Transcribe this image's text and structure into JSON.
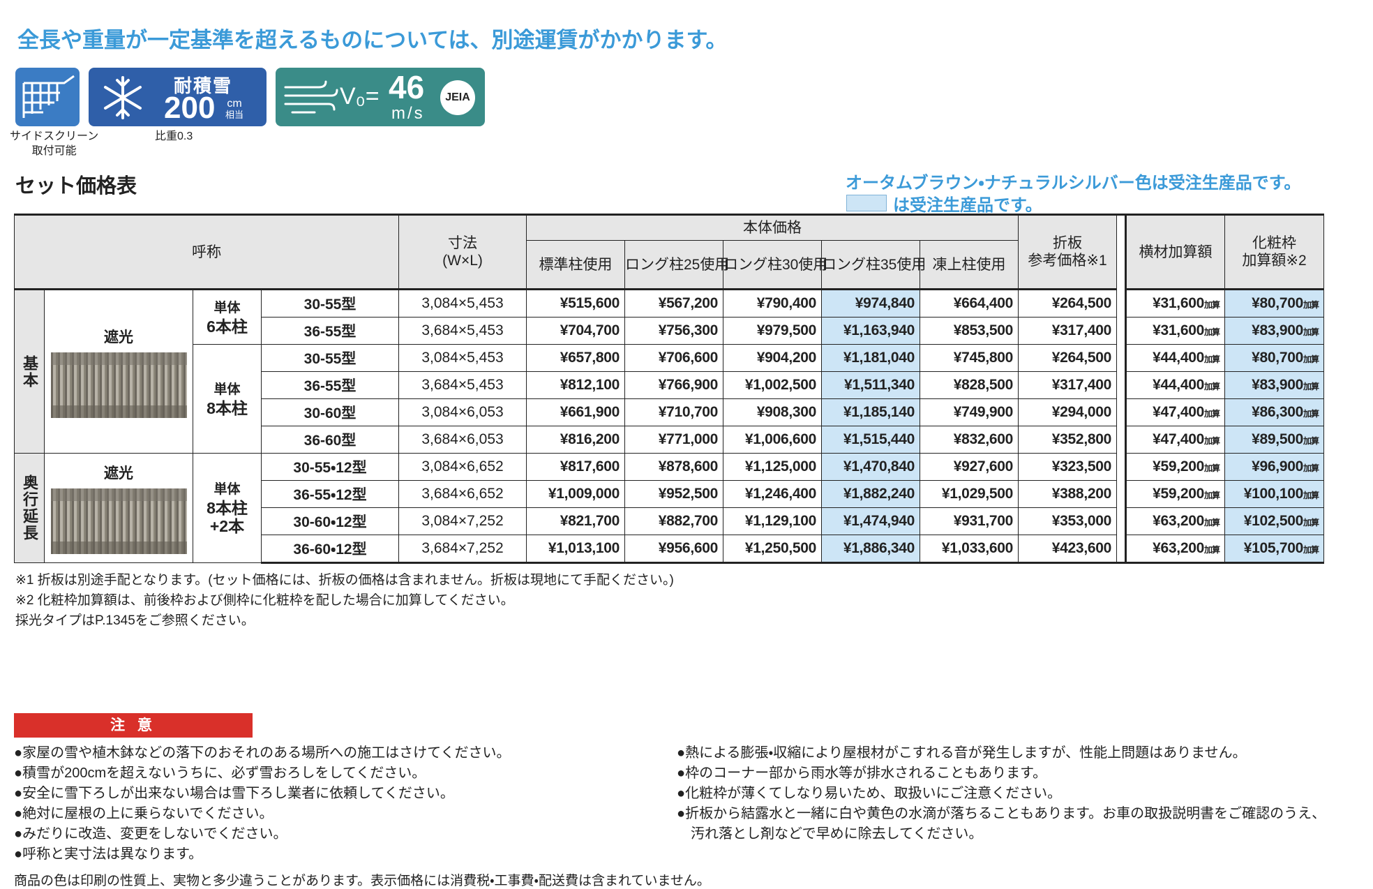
{
  "header": {
    "notice": "全長や重量が一定基準を超えるものについては、別途運賃がかかります。"
  },
  "badges": {
    "side_screen": {
      "caption_lines": [
        "サイドスクリーン",
        "取付可能"
      ]
    },
    "snow": {
      "label": "耐積雪",
      "value": "200",
      "unit": "cm",
      "unit_note": "相当",
      "caption": "比重0.3"
    },
    "wind": {
      "label": "V₀=",
      "value": "46",
      "unit": "m/s",
      "mark": "JEIA"
    }
  },
  "section": {
    "title": "セット価格表",
    "notes": [
      "オータムブラウン・ナチュラルシルバー色は受注生産品です。",
      "は受注生産品です。"
    ]
  },
  "table": {
    "headers": {
      "name": "呼称",
      "size": [
        "寸法",
        "(W×L)"
      ],
      "body_price": "本体価格",
      "price_columns": [
        "標準柱使用",
        "ロング柱25使用",
        "ロング柱30使用",
        "ロング柱35使用",
        "凍上柱使用"
      ],
      "fold": [
        "折板",
        "参考価格※1"
      ],
      "cross": "横材加算額",
      "decor": [
        "化粧枠",
        "加算額※2"
      ]
    },
    "add_suffix": "加算",
    "groups": [
      {
        "label": "基本",
        "image_label": "遮光",
        "subgroups": [
          {
            "label_lines": [
              "単体",
              "6本柱"
            ],
            "rows": [
              [
                "30-55型",
                "3,084×5,453",
                "¥515,600",
                "¥567,200",
                "¥790,400",
                "¥974,840",
                "¥664,400",
                "¥264,500",
                "¥31,600",
                "¥80,700"
              ],
              [
                "36-55型",
                "3,684×5,453",
                "¥704,700",
                "¥756,300",
                "¥979,500",
                "¥1,163,940",
                "¥853,500",
                "¥317,400",
                "¥31,600",
                "¥83,900"
              ]
            ]
          },
          {
            "label_lines": [
              "単体",
              "8本柱"
            ],
            "rows": [
              [
                "30-55型",
                "3,084×5,453",
                "¥657,800",
                "¥706,600",
                "¥904,200",
                "¥1,181,040",
                "¥745,800",
                "¥264,500",
                "¥44,400",
                "¥80,700"
              ],
              [
                "36-55型",
                "3,684×5,453",
                "¥812,100",
                "¥766,900",
                "¥1,002,500",
                "¥1,511,340",
                "¥828,500",
                "¥317,400",
                "¥44,400",
                "¥83,900"
              ],
              [
                "30-60型",
                "3,084×6,053",
                "¥661,900",
                "¥710,700",
                "¥908,300",
                "¥1,185,140",
                "¥749,900",
                "¥294,000",
                "¥47,400",
                "¥86,300"
              ],
              [
                "36-60型",
                "3,684×6,053",
                "¥816,200",
                "¥771,000",
                "¥1,006,600",
                "¥1,515,440",
                "¥832,600",
                "¥352,800",
                "¥47,400",
                "¥89,500"
              ]
            ]
          }
        ]
      },
      {
        "label": "奥行延長",
        "image_label": "遮光",
        "subgroups": [
          {
            "label_lines": [
              "単体",
              "8本柱",
              "+2本"
            ],
            "rows": [
              [
                "30-55・12型",
                "3,084×6,652",
                "¥817,600",
                "¥878,600",
                "¥1,125,000",
                "¥1,470,840",
                "¥927,600",
                "¥323,500",
                "¥59,200",
                "¥96,900"
              ],
              [
                "36-55・12型",
                "3,684×6,652",
                "¥1,009,000",
                "¥952,500",
                "¥1,246,400",
                "¥1,882,240",
                "¥1,029,500",
                "¥388,200",
                "¥59,200",
                "¥100,100"
              ],
              [
                "30-60・12型",
                "3,084×7,252",
                "¥821,700",
                "¥882,700",
                "¥1,129,100",
                "¥1,474,940",
                "¥931,700",
                "¥353,000",
                "¥63,200",
                "¥102,500"
              ],
              [
                "36-60・12型",
                "3,684×7,252",
                "¥1,013,100",
                "¥956,600",
                "¥1,250,500",
                "¥1,886,340",
                "¥1,033,600",
                "¥423,600",
                "¥63,200",
                "¥105,700"
              ]
            ]
          }
        ]
      }
    ]
  },
  "footnotes": [
    "※1 折板は別途手配となります。(セット価格には、折板の価格は含まれません。折板は現地にて手配ください。)",
    "※2 化粧枠加算額は、前後枠および側枠に化粧枠を配した場合に加算してください。",
    "採光タイプはP.1345をご参照ください。"
  ],
  "caution": {
    "title": "注 意",
    "left": [
      "●家屋の雪や植木鉢などの落下のおそれのある場所への施工はさけてください。",
      "●積雪が200cmを超えないうちに、必ず雪おろしをしてください。",
      "●安全に雪下ろしが出来ない場合は雪下ろし業者に依頼してください。",
      "●絶対に屋根の上に乗らないでください。",
      "●みだりに改造、変更をしないでください。",
      "●呼称と実寸法は異なります。"
    ],
    "right": [
      "●熱による膨張・収縮により屋根材がこすれる音が発生しますが、性能上問題はありません。",
      "●枠のコーナー部から雨水等が排水されることもあります。",
      "●化粧枠が薄くてしなり易いため、取扱いにご注意ください。",
      "●折板から結露水と一緒に白や黄色の水滴が落ちることもあります。お車の取扱説明書をご確認のうえ、汚れ落とし剤などで早めに除去してください。"
    ]
  },
  "footer": "商品の色は印刷の性質上、実物と多少違うことがあります。表示価格には消費税・工事費・配送費は含まれていません。"
}
